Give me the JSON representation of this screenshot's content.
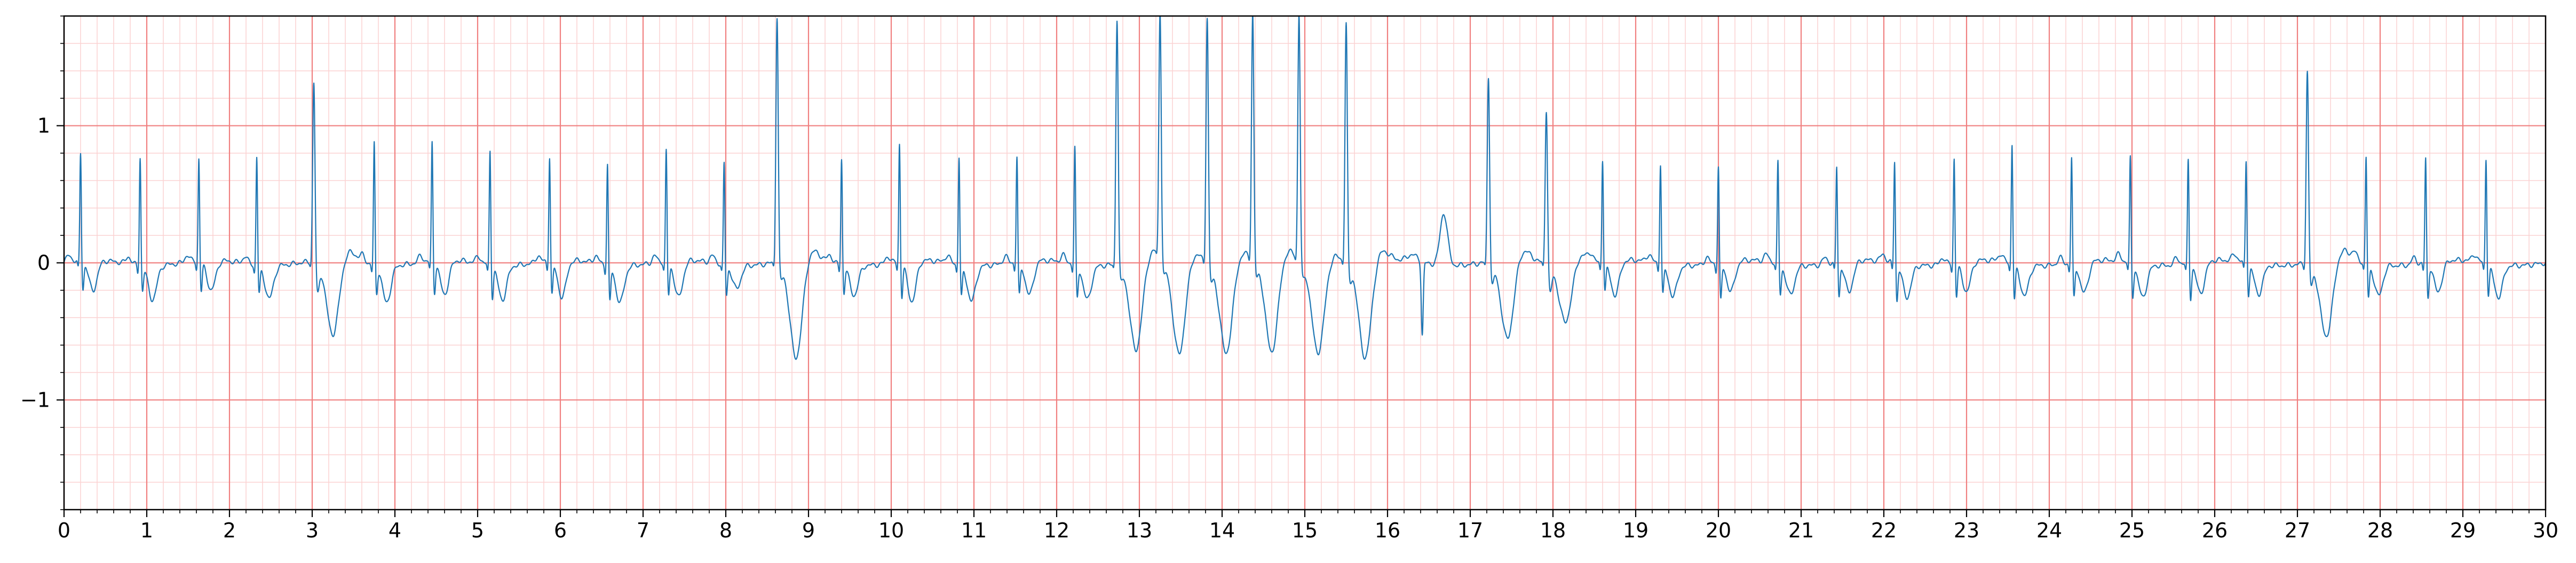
{
  "chart_data": {
    "type": "line",
    "title": "",
    "xlabel": "",
    "ylabel": "",
    "xlim": [
      0,
      30
    ],
    "ylim": [
      -1.8,
      1.8
    ],
    "x_ticks": [
      0,
      1,
      2,
      3,
      4,
      5,
      6,
      7,
      8,
      9,
      10,
      11,
      12,
      13,
      14,
      15,
      16,
      17,
      18,
      19,
      20,
      21,
      22,
      23,
      24,
      25,
      26,
      27,
      28,
      29,
      30
    ],
    "x_tick_labels": [
      "0",
      "1",
      "2",
      "3",
      "4",
      "5",
      "6",
      "7",
      "8",
      "9",
      "10",
      "11",
      "12",
      "13",
      "14",
      "15",
      "16",
      "17",
      "18",
      "19",
      "20",
      "21",
      "22",
      "23",
      "24",
      "25",
      "26",
      "27",
      "28",
      "29",
      "30"
    ],
    "y_ticks": [
      -1,
      0,
      1
    ],
    "y_tick_labels": [
      "−1",
      "0",
      "1"
    ],
    "grid": "on",
    "legend": "none",
    "colors": {
      "trace": "#1f77b4",
      "grid_major": "#f08080",
      "grid_minor": "#fbd2d2",
      "axes": "#000000"
    },
    "series": [
      {
        "beats": [
          {
            "t": 0.2,
            "r": 0.8,
            "s": -0.2,
            "tw": -0.22,
            "kind": "n"
          },
          {
            "t": 0.92,
            "r": 0.8,
            "s": -0.18,
            "tw": -0.25,
            "kind": "n"
          },
          {
            "t": 1.63,
            "r": 0.76,
            "s": -0.22,
            "tw": -0.22,
            "kind": "n"
          },
          {
            "t": 2.33,
            "r": 0.8,
            "s": -0.2,
            "tw": -0.24,
            "kind": "n"
          },
          {
            "t": 3.02,
            "r": 1.32,
            "s": -0.22,
            "tw": -0.55,
            "kind": "v"
          },
          {
            "t": 3.75,
            "r": 0.9,
            "s": -0.2,
            "tw": -0.27,
            "kind": "n"
          },
          {
            "t": 4.45,
            "r": 0.88,
            "s": -0.22,
            "tw": -0.25,
            "kind": "n"
          },
          {
            "t": 5.15,
            "r": 0.85,
            "s": -0.23,
            "tw": -0.25,
            "kind": "n"
          },
          {
            "t": 5.87,
            "r": 0.78,
            "s": -0.24,
            "tw": -0.27,
            "kind": "n"
          },
          {
            "t": 6.57,
            "r": 0.75,
            "s": -0.26,
            "tw": -0.27,
            "kind": "n"
          },
          {
            "t": 7.28,
            "r": 0.82,
            "s": -0.24,
            "tw": -0.27,
            "kind": "n"
          },
          {
            "t": 7.98,
            "r": 0.75,
            "s": -0.22,
            "tw": -0.17,
            "kind": "n"
          },
          {
            "t": 8.62,
            "r": 1.8,
            "s": -0.1,
            "tw": -0.72,
            "kind": "v"
          },
          {
            "t": 9.4,
            "r": 0.78,
            "s": -0.2,
            "tw": -0.22,
            "kind": "n"
          },
          {
            "t": 10.1,
            "r": 0.88,
            "s": -0.25,
            "tw": -0.3,
            "kind": "n"
          },
          {
            "t": 10.82,
            "r": 0.8,
            "s": -0.23,
            "tw": -0.26,
            "kind": "n"
          },
          {
            "t": 11.52,
            "r": 0.78,
            "s": -0.24,
            "tw": -0.25,
            "kind": "n"
          },
          {
            "t": 12.22,
            "r": 0.86,
            "s": -0.24,
            "tw": -0.25,
            "kind": "n"
          },
          {
            "t": 12.73,
            "r": 1.8,
            "s": -0.1,
            "tw": -0.65,
            "kind": "v"
          },
          {
            "t": 13.25,
            "r": 1.8,
            "s": -0.1,
            "tw": -0.68,
            "kind": "v"
          },
          {
            "t": 13.82,
            "r": 1.8,
            "s": -0.1,
            "tw": -0.65,
            "kind": "v"
          },
          {
            "t": 14.37,
            "r": 1.8,
            "s": -0.1,
            "tw": -0.68,
            "kind": "v"
          },
          {
            "t": 14.93,
            "r": 1.8,
            "s": -0.1,
            "tw": -0.65,
            "kind": "v"
          },
          {
            "t": 15.5,
            "r": 1.75,
            "s": -0.1,
            "tw": -0.7,
            "kind": "v"
          },
          {
            "t": 17.22,
            "r": 1.37,
            "s": -0.15,
            "tw": -0.58,
            "kind": "v"
          },
          {
            "t": 17.92,
            "r": 1.14,
            "s": -0.2,
            "tw": -0.42,
            "kind": "v"
          },
          {
            "t": 18.6,
            "r": 0.77,
            "s": -0.2,
            "tw": -0.25,
            "kind": "n"
          },
          {
            "t": 19.3,
            "r": 0.74,
            "s": -0.22,
            "tw": -0.23,
            "kind": "n"
          },
          {
            "t": 20.0,
            "r": 0.72,
            "s": -0.27,
            "tw": -0.22,
            "kind": "n"
          },
          {
            "t": 20.72,
            "r": 0.75,
            "s": -0.22,
            "tw": -0.22,
            "kind": "n"
          },
          {
            "t": 21.43,
            "r": 0.72,
            "s": -0.24,
            "tw": -0.22,
            "kind": "n"
          },
          {
            "t": 22.13,
            "r": 0.76,
            "s": -0.27,
            "tw": -0.24,
            "kind": "n"
          },
          {
            "t": 22.85,
            "r": 0.78,
            "s": -0.24,
            "tw": -0.22,
            "kind": "n"
          },
          {
            "t": 23.55,
            "r": 0.88,
            "s": -0.26,
            "tw": -0.23,
            "kind": "n"
          },
          {
            "t": 24.27,
            "r": 0.78,
            "s": -0.25,
            "tw": -0.23,
            "kind": "n"
          },
          {
            "t": 24.98,
            "r": 0.78,
            "s": -0.24,
            "tw": -0.24,
            "kind": "n"
          },
          {
            "t": 25.68,
            "r": 0.77,
            "s": -0.25,
            "tw": -0.23,
            "kind": "n"
          },
          {
            "t": 26.38,
            "r": 0.76,
            "s": -0.23,
            "tw": -0.22,
            "kind": "n"
          },
          {
            "t": 27.12,
            "r": 1.41,
            "s": -0.15,
            "tw": -0.56,
            "kind": "v"
          },
          {
            "t": 27.83,
            "r": 0.78,
            "s": -0.25,
            "tw": -0.23,
            "kind": "n"
          },
          {
            "t": 28.55,
            "r": 0.78,
            "s": -0.25,
            "tw": -0.22,
            "kind": "n"
          },
          {
            "t": 29.28,
            "r": 0.78,
            "s": -0.23,
            "tw": -0.24,
            "kind": "n"
          }
        ],
        "artifacts": [
          {
            "t": 16.3,
            "peak": 0.05
          },
          {
            "t": 16.42,
            "dip": -0.53
          },
          {
            "t": 16.68,
            "peak": 0.38
          }
        ]
      }
    ]
  }
}
